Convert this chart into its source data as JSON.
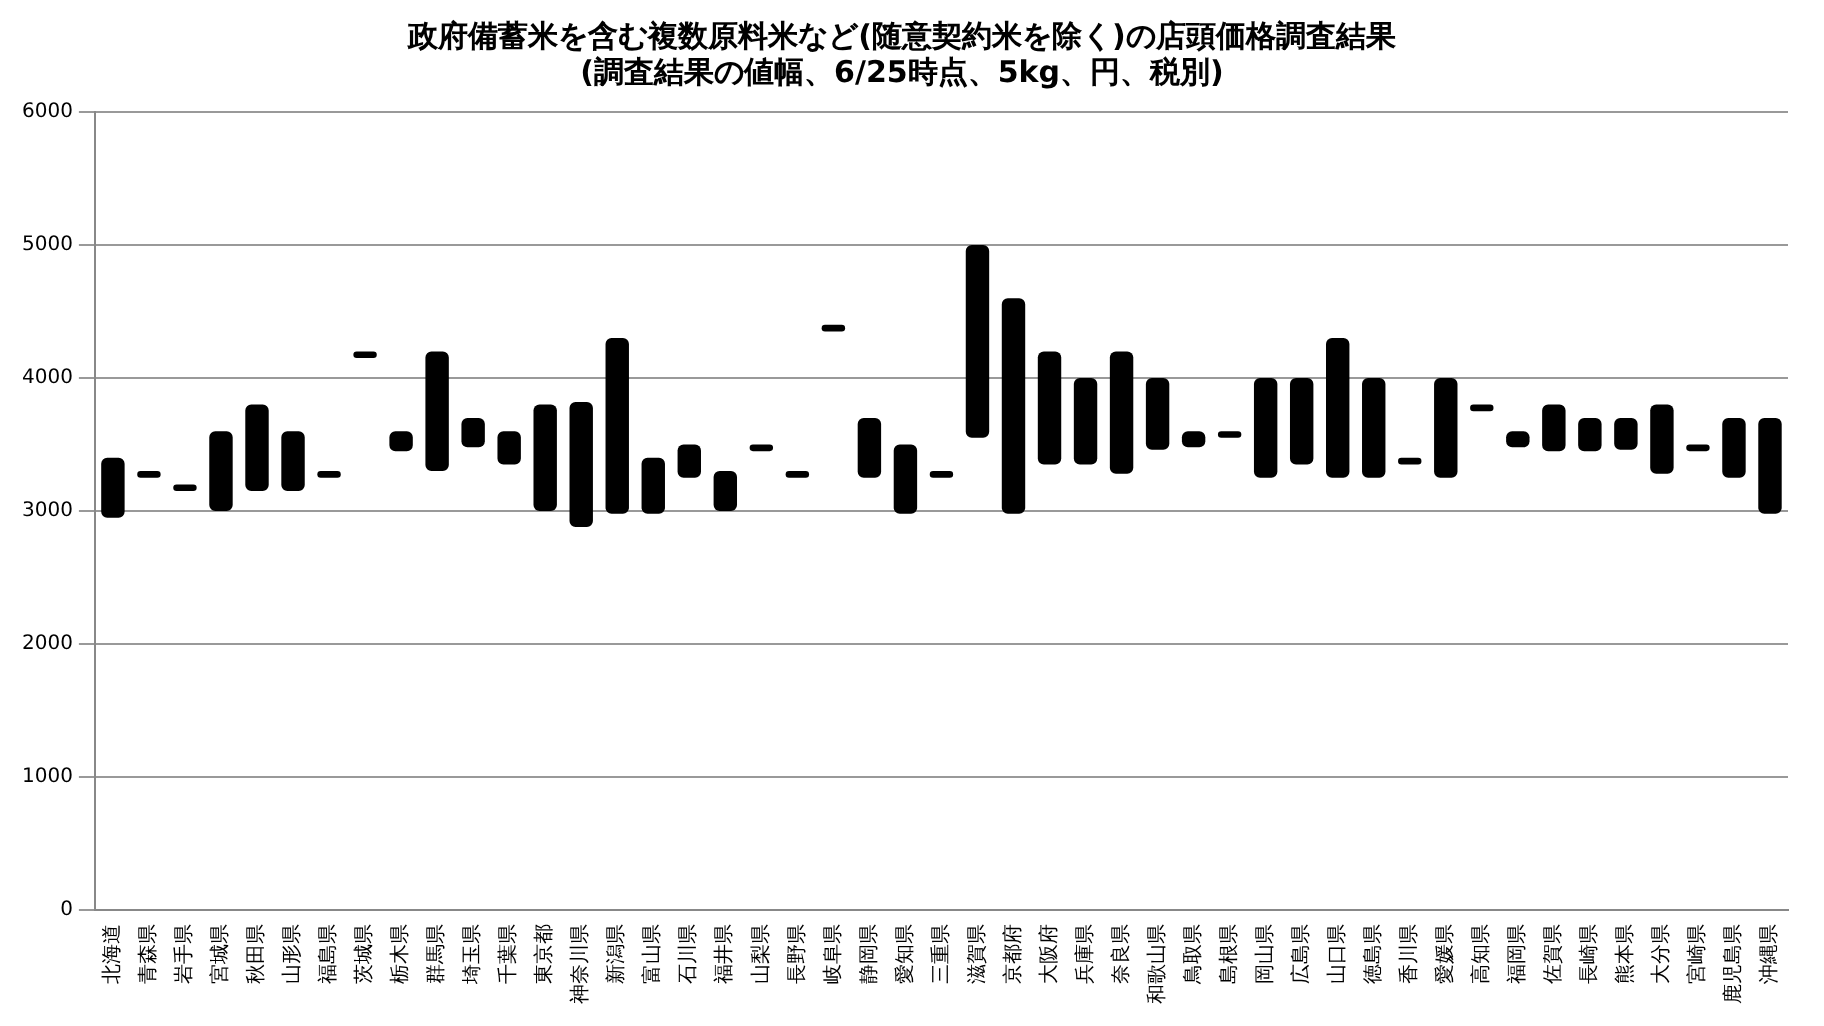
{
  "chart_data": {
    "type": "bar",
    "title": "政府備蓄米を含む複数原料米など(随意契約米を除く)の店頭価格調査結果",
    "subtitle": "(調査結果の値幅、6/25時点、5kg、円、税別)",
    "categories": [
      "北海道",
      "青森県",
      "岩手県",
      "宮城県",
      "秋田県",
      "山形県",
      "福島県",
      "茨城県",
      "栃木県",
      "群馬県",
      "埼玉県",
      "千葉県",
      "東京都",
      "神奈川県",
      "新潟県",
      "富山県",
      "石川県",
      "福井県",
      "山梨県",
      "長野県",
      "岐阜県",
      "静岡県",
      "愛知県",
      "三重県",
      "滋賀県",
      "京都府",
      "大阪府",
      "兵庫県",
      "奈良県",
      "和歌山県",
      "鳥取県",
      "島根県",
      "岡山県",
      "広島県",
      "山口県",
      "徳島県",
      "香川県",
      "愛媛県",
      "高知県",
      "福岡県",
      "佐賀県",
      "長崎県",
      "熊本県",
      "大分県",
      "宮崎県",
      "鹿児島県",
      "沖縄県"
    ],
    "base": [
      2950,
      3250,
      3150,
      3000,
      3150,
      3150,
      3250,
      4150,
      3450,
      3300,
      3480,
      3350,
      3000,
      2880,
      2980,
      2980,
      3250,
      3000,
      3450,
      3250,
      4350,
      3250,
      2980,
      3250,
      3550,
      2980,
      3350,
      3350,
      3280,
      3460,
      3480,
      3550,
      3250,
      3350,
      3250,
      3250,
      3350,
      3250,
      3750,
      3480,
      3450,
      3450,
      3460,
      3280,
      3450,
      3250,
      2980
    ],
    "values": [
      450,
      50,
      50,
      600,
      650,
      450,
      50,
      50,
      150,
      900,
      220,
      250,
      800,
      940,
      1320,
      420,
      250,
      300,
      50,
      50,
      50,
      450,
      520,
      50,
      1450,
      1620,
      850,
      650,
      920,
      540,
      120,
      50,
      750,
      650,
      1050,
      750,
      50,
      750,
      50,
      120,
      350,
      250,
      240,
      520,
      50,
      450,
      720
    ],
    "color": "#000000",
    "ylim": [
      0,
      6000
    ],
    "yticks": [
      0,
      1000,
      2000,
      3000,
      4000,
      5000,
      6000
    ],
    "grid": "y"
  }
}
